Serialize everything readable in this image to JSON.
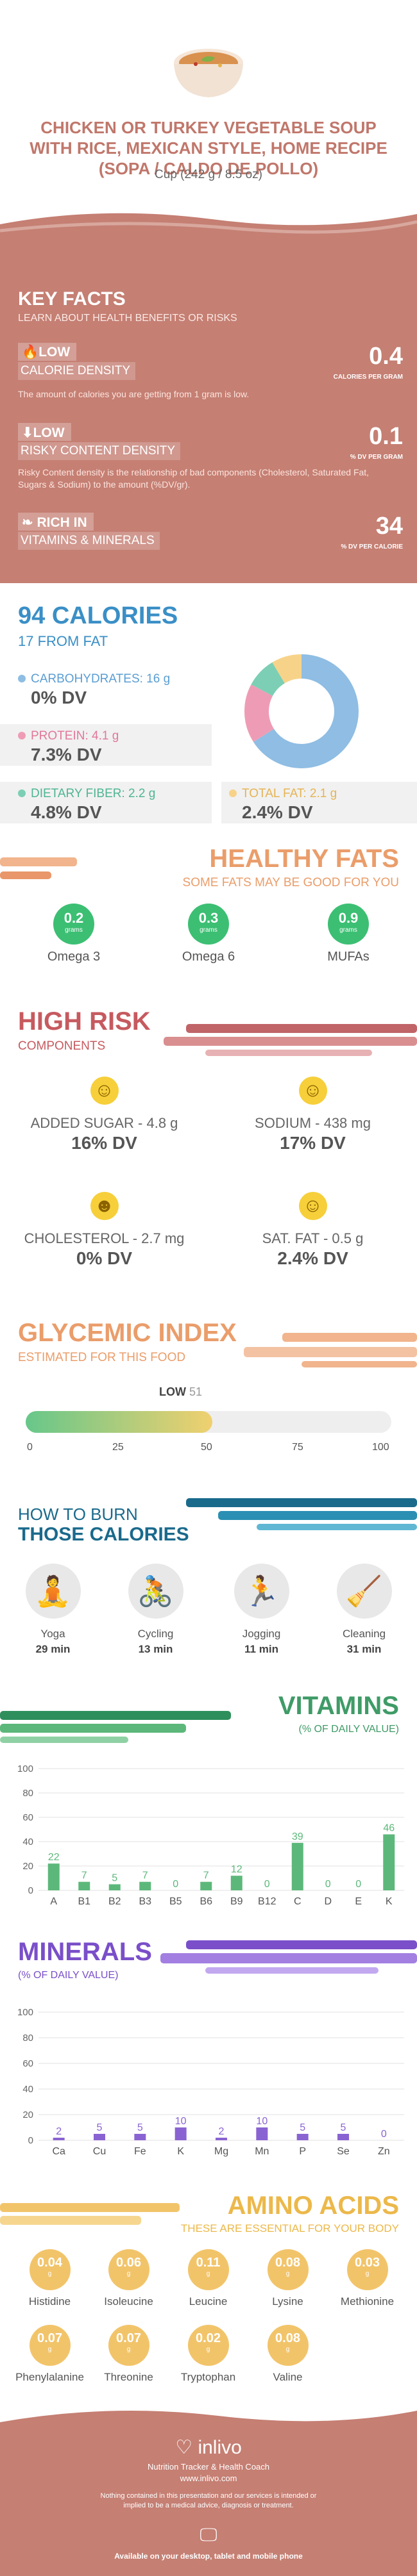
{
  "header": {
    "title": "CHICKEN OR TURKEY VEGETABLE SOUP WITH RICE, MEXICAN STYLE, HOME RECIPE (SOPA / CALDO DE POLLO)",
    "serving": "Cup (242 g / 8.5 oz)"
  },
  "key_facts": {
    "title": "KEY FACTS",
    "subtitle": "LEARN ABOUT HEALTH BENEFITS OR RISKS",
    "items": [
      {
        "tag": "LOW",
        "label": "CALORIE DENSITY",
        "value": "0.4",
        "unit": "CALORIES PER GRAM",
        "desc": "The amount of calories you are getting from 1 gram is low."
      },
      {
        "tag": "LOW",
        "label": "RISKY CONTENT DENSITY",
        "value": "0.1",
        "unit": "% DV PER GRAM",
        "desc": "Risky Content density is the relationship of bad components (Cholesterol, Saturated Fat, Sugars & Sodium) to the amount (%DV/gr)."
      },
      {
        "tag": "RICH IN",
        "label": "VITAMINS & MINERALS",
        "value": "34",
        "unit": "% DV PER CALORIE",
        "desc": ""
      }
    ]
  },
  "calories": {
    "title": "94 CALORIES",
    "subtitle": "17 FROM FAT",
    "carbs": {
      "label": "CARBOHYDRATES: 16 g",
      "dv": "0% DV",
      "color": "#8fbde3"
    },
    "protein": {
      "label": "PROTEIN: 4.1 g",
      "dv": "7.3% DV",
      "color": "#ee9cb5"
    },
    "fiber": {
      "label": "DIETARY FIBER: 2.2 g",
      "dv": "4.8% DV",
      "color": "#7ccfb4"
    },
    "fat": {
      "label": "TOTAL FAT: 2.1 g",
      "dv": "2.4% DV",
      "color": "#f7d38a"
    }
  },
  "healthy_fats": {
    "title": "HEALTHY FATS",
    "subtitle": "SOME FATS MAY BE GOOD FOR YOU",
    "unit": "grams",
    "items": [
      {
        "value": "0.2",
        "name": "Omega 3"
      },
      {
        "value": "0.3",
        "name": "Omega 6"
      },
      {
        "value": "0.9",
        "name": "MUFAs"
      }
    ]
  },
  "high_risk": {
    "title": "HIGH RISK",
    "subtitle": "COMPONENTS",
    "items": [
      {
        "label": "ADDED SUGAR - 4.8 g",
        "dv": "16% DV"
      },
      {
        "label": "SODIUM - 438 mg",
        "dv": "17% DV"
      },
      {
        "label": "CHOLESTEROL - 2.7 mg",
        "dv": "0% DV"
      },
      {
        "label": "SAT. FAT - 0.5 g",
        "dv": "2.4% DV"
      }
    ]
  },
  "glycemic": {
    "title": "GLYCEMIC INDEX",
    "subtitle": "ESTIMATED FOR THIS FOOD",
    "level": "LOW",
    "value": "51",
    "gi_value": 51,
    "ticks": [
      "0",
      "25",
      "50",
      "75",
      "100"
    ]
  },
  "burn": {
    "title1": "HOW TO BURN",
    "title2": "THOSE CALORIES",
    "items": [
      {
        "name": "Yoga",
        "time": "29 min"
      },
      {
        "name": "Cycling",
        "time": "13 min"
      },
      {
        "name": "Jogging",
        "time": "11 min"
      },
      {
        "name": "Cleaning",
        "time": "31 min"
      }
    ]
  },
  "chart_data": [
    {
      "type": "bar",
      "title": "VITAMINS",
      "subtitle": "(% OF DAILY VALUE)",
      "ylim": [
        0,
        100
      ],
      "yticks": [
        "0",
        "20",
        "40",
        "60",
        "80",
        "100"
      ],
      "categories": [
        "A",
        "B1",
        "B2",
        "B3",
        "B5",
        "B6",
        "B9",
        "B12",
        "C",
        "D",
        "E",
        "K"
      ],
      "values": [
        22,
        7,
        5,
        7,
        0,
        7,
        12,
        0,
        39,
        0,
        0,
        46
      ],
      "labels": [
        "22",
        "7",
        "5",
        "7",
        "0",
        "7",
        "12",
        "0",
        "39",
        "0",
        "0",
        "46"
      ],
      "color": "#5cb87a"
    },
    {
      "type": "bar",
      "title": "MINERALS",
      "subtitle": "(% OF DAILY VALUE)",
      "ylim": [
        0,
        100
      ],
      "yticks": [
        "0",
        "20",
        "40",
        "60",
        "80",
        "100"
      ],
      "categories": [
        "Ca",
        "Cu",
        "Fe",
        "K",
        "Mg",
        "Mn",
        "P",
        "Se",
        "Zn"
      ],
      "values": [
        2,
        5,
        5,
        10,
        2,
        10,
        5,
        5,
        0
      ],
      "labels": [
        "2",
        "5",
        "5",
        "10",
        "2",
        "10",
        "5",
        "5",
        "0"
      ],
      "color": "#8a63d2"
    }
  ],
  "amino": {
    "title": "AMINO ACIDS",
    "subtitle": "THESE ARE ESSENTIAL FOR YOUR BODY",
    "unit": "g",
    "items": [
      {
        "value": "0.04",
        "name": "Histidine"
      },
      {
        "value": "0.06",
        "name": "Isoleucine"
      },
      {
        "value": "0.11",
        "name": "Leucine"
      },
      {
        "value": "0.08",
        "name": "Lysine"
      },
      {
        "value": "0.03",
        "name": "Methionine"
      },
      {
        "value": "0.07",
        "name": "Phenylalanine"
      },
      {
        "value": "0.07",
        "name": "Threonine"
      },
      {
        "value": "0.02",
        "name": "Tryptophan"
      },
      {
        "value": "0.08",
        "name": "Valine"
      }
    ]
  },
  "footer": {
    "brand": "inlivo",
    "tagline": "Nutrition Tracker & Health Coach",
    "url": "www.inlivo.com",
    "disclaimer": "Nothing contained in this presentation and our services is intended or implied to be a medical advice, diagnosis or treatment.",
    "available": "Available on your desktop, tablet and mobile phone"
  }
}
